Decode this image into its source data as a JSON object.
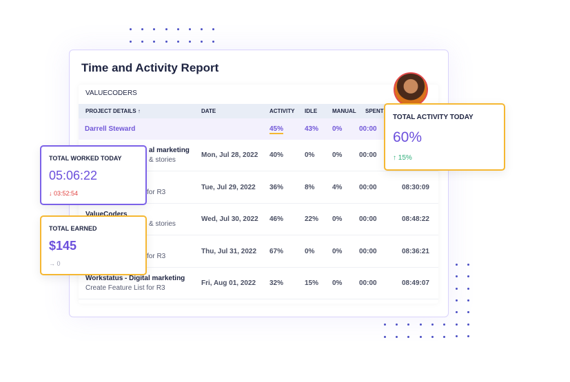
{
  "report": {
    "title": "Time and Activity Report",
    "organization": "VALUECODERS",
    "columns": [
      "PROJECT DETAILS ↑",
      "DATE",
      "ACTIVITY",
      "IDLE",
      "MANUAL",
      "SPENT"
    ],
    "highlight": {
      "name": "Darrell Steward",
      "activity": "45%",
      "idle": "43%",
      "manual": "0%",
      "spent": "00:00"
    },
    "rows": [
      {
        "title": "al marketing",
        "subtitle": "& stories",
        "date": "Mon, Jul 28, 2022",
        "activity": "40%",
        "idle": "0%",
        "manual": "0%",
        "spent": "00:00",
        "total": ""
      },
      {
        "title": "",
        "subtitle": "for R3",
        "date": "Tue, Jul 29, 2022",
        "activity": "36%",
        "idle": "8%",
        "manual": "4%",
        "spent": "00:00",
        "total": "08:30:09"
      },
      {
        "title": "ValueCoders",
        "subtitle": "& stories",
        "date": "Wed, Jul 30, 2022",
        "activity": "46%",
        "idle": "22%",
        "manual": "0%",
        "spent": "00:00",
        "total": "08:48:22"
      },
      {
        "title": "",
        "subtitle": "for R3",
        "date": "Thu, Jul 31, 2022",
        "activity": "67%",
        "idle": "0%",
        "manual": "0%",
        "spent": "00:00",
        "total": "08:36:21"
      },
      {
        "title": "Workstatus - Digital marketing",
        "subtitle": "Create Feature List for R3",
        "date": "Fri, Aug 01, 2022",
        "activity": "32%",
        "idle": "15%",
        "manual": "0%",
        "spent": "00:00",
        "total": "08:49:07"
      }
    ]
  },
  "cards": {
    "worked": {
      "label": "TOTAL WORKED TODAY",
      "value": "05:06:22",
      "change": "↓ 03:52:54",
      "change_color": "#e0413f",
      "border": "#7b61e8"
    },
    "earned": {
      "label": "TOTAL EARNED",
      "value": "$145",
      "change": "→ 0",
      "border": "#f5b731"
    },
    "activity": {
      "label": "TOTAL ACTIVITY TODAY",
      "value": "60%",
      "change": "↑ 15%",
      "change_color": "#2fae7a",
      "border": "#f5b731"
    }
  },
  "colors": {
    "accent": "#6b4fdc",
    "highlight_underline": "#f5b731"
  }
}
